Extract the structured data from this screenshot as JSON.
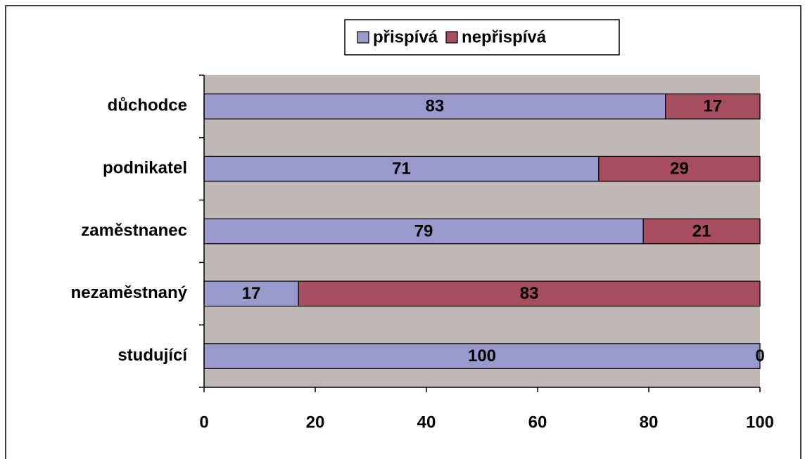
{
  "chart_data": {
    "type": "stacked_bar_horizontal",
    "categories": [
      "studující",
      "nezaměstnaný",
      "zaměstnanec",
      "podnikatel",
      "důchodce"
    ],
    "series": [
      {
        "name": "přispívá",
        "color": "#9999cc",
        "values": [
          100,
          17,
          79,
          71,
          83
        ]
      },
      {
        "name": "nepřispívá",
        "color": "#a64d5f",
        "values": [
          0,
          83,
          21,
          29,
          17
        ]
      }
    ],
    "xlim": [
      0,
      100
    ],
    "xticks": [
      0,
      20,
      40,
      60,
      80,
      100
    ],
    "plot_background": "#c0b8b4",
    "legend": "top"
  }
}
